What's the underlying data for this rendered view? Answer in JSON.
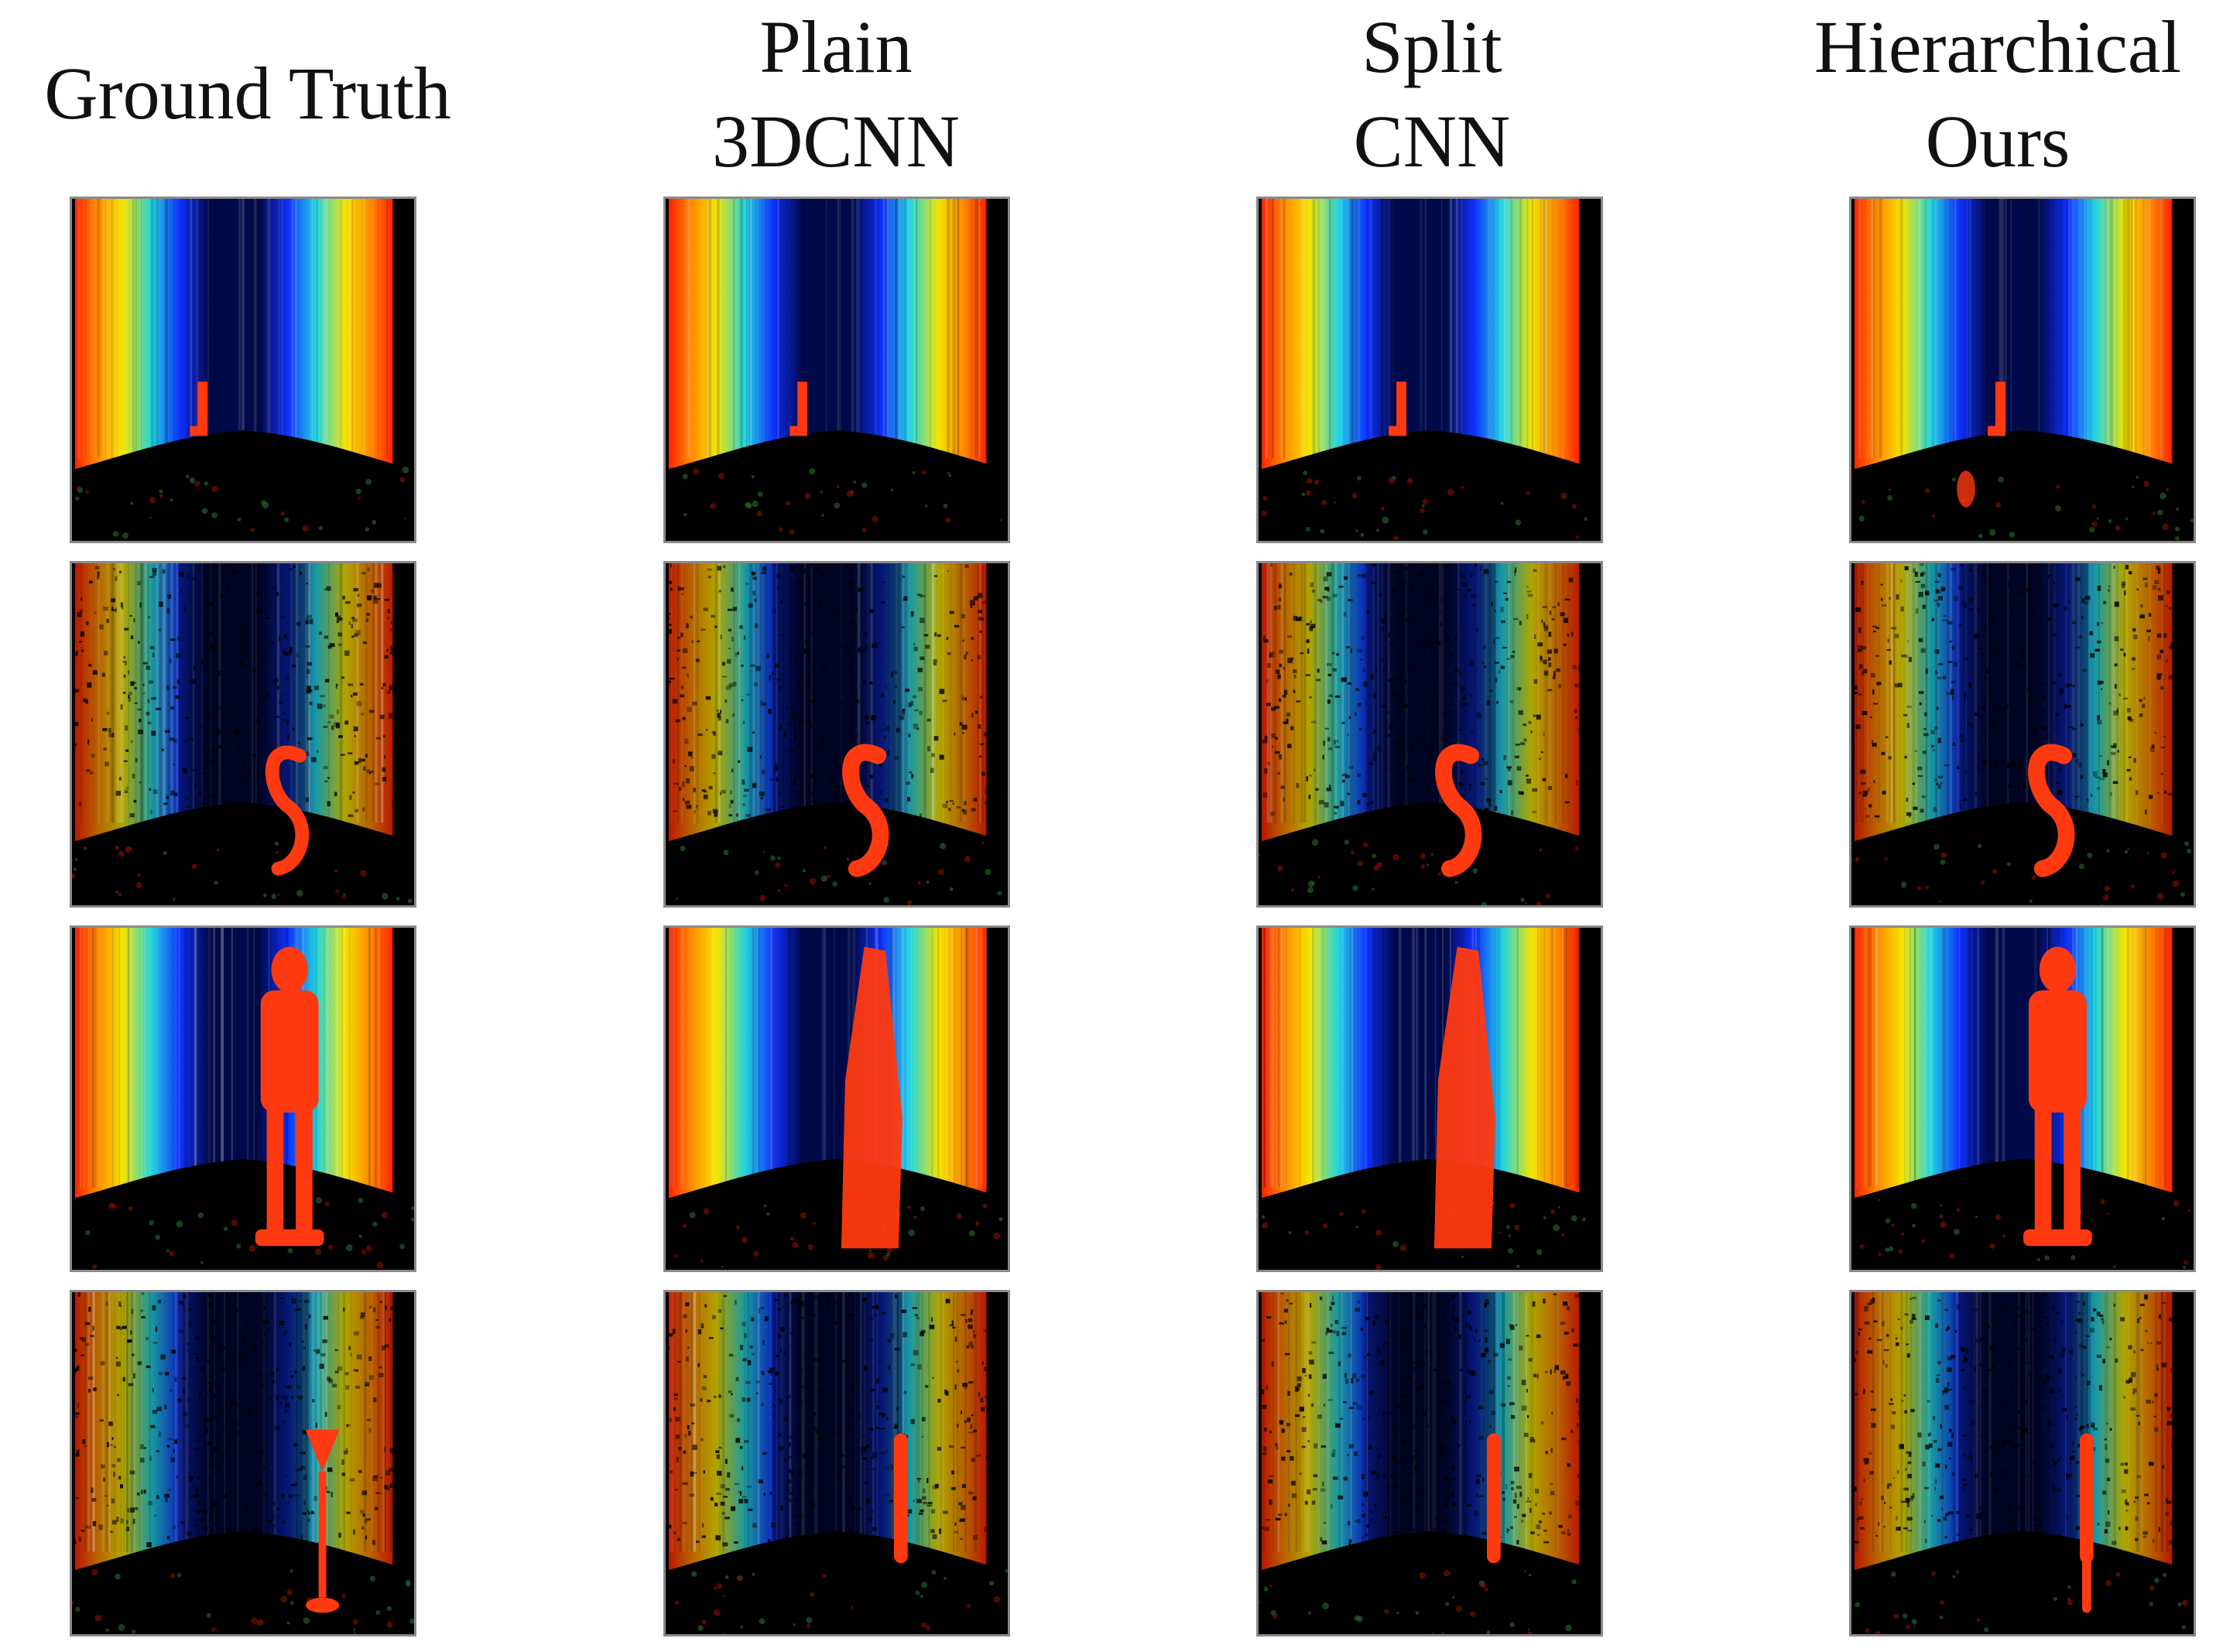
{
  "columns": [
    {
      "id": "ground-truth",
      "lines": [
        "",
        "Ground  Truth"
      ]
    },
    {
      "id": "plain-3dcnn",
      "lines": [
        "Plain",
        "3DCNN"
      ]
    },
    {
      "id": "split-cnn",
      "lines": [
        "Split",
        "CNN"
      ]
    },
    {
      "id": "hierarchical-ours",
      "lines": [
        "Hierarchical",
        "Ours"
      ]
    }
  ],
  "rows": [
    {
      "object": "bar-small",
      "background": "smooth"
    },
    {
      "object": "s-shape",
      "background": "noisy"
    },
    {
      "object": "figure",
      "background": "smooth"
    },
    {
      "object": "hourglass-pole",
      "background": "noisy"
    }
  ],
  "palette": {
    "red": "#ff2200",
    "orange": "#ff8800",
    "yellow": "#f5e400",
    "cyan": "#22d6e0",
    "blue": "#1030ff",
    "navy": "#000a4a",
    "object": "#ff3a10",
    "ground": "#000000"
  }
}
